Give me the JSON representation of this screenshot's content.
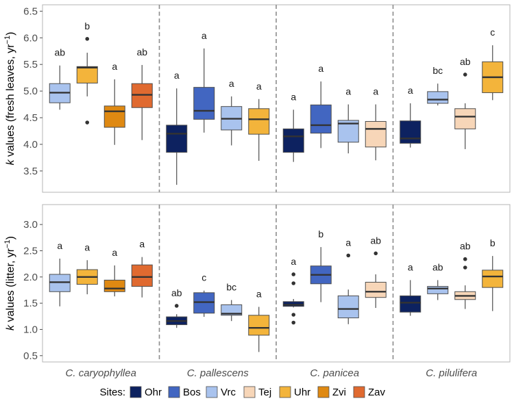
{
  "chart_data": {
    "type": "box",
    "species": [
      "C. caryophyllea",
      "C. pallescens",
      "C. panicea",
      "C. pilulifera"
    ],
    "legend": {
      "title": "Sites:",
      "items": [
        {
          "name": "Ohr",
          "color": "#0d2260"
        },
        {
          "name": "Bos",
          "color": "#4266c1"
        },
        {
          "name": "Vrc",
          "color": "#a9c3ee"
        },
        {
          "name": "Tej",
          "color": "#f7d6b8"
        },
        {
          "name": "Uhr",
          "color": "#f3b43b"
        },
        {
          "name": "Zvi",
          "color": "#df8912"
        },
        {
          "name": "Zav",
          "color": "#e06a30"
        }
      ]
    },
    "panels": [
      {
        "id": "fresh",
        "ylabel_k": "k",
        "ylabel_rest": " values (fresh leaves, yr",
        "ylabel_sup": "−1",
        "ylabel_close": ")",
        "ylim": [
          3.1,
          6.62
        ],
        "yticks": [
          "3.5",
          "4.0",
          "4.5",
          "5.0",
          "5.5",
          "6.0",
          "6.5"
        ],
        "groups": [
          {
            "species": "C. caryophyllea",
            "boxes": [
              {
                "site": "Vrc",
                "min": 4.65,
                "q1": 4.78,
                "median": 4.97,
                "q3": 5.14,
                "max": 5.48,
                "outliers": [],
                "letter": "ab"
              },
              {
                "site": "Uhr",
                "min": 4.9,
                "q1": 5.15,
                "median": 5.44,
                "q3": 5.46,
                "max": 5.72,
                "outliers": [
                  5.98,
                  4.41
                ],
                "letter": "b"
              },
              {
                "site": "Zvi",
                "min": 3.99,
                "q1": 4.32,
                "median": 4.62,
                "q3": 4.72,
                "max": 5.22,
                "outliers": [],
                "letter": "a"
              },
              {
                "site": "Zav",
                "min": 4.08,
                "q1": 4.69,
                "median": 4.93,
                "q3": 5.14,
                "max": 5.49,
                "outliers": [],
                "letter": "ab"
              }
            ]
          },
          {
            "species": "C. pallescens",
            "boxes": [
              {
                "site": "Ohr",
                "min": 3.24,
                "q1": 3.85,
                "median": 4.2,
                "q3": 4.36,
                "max": 5.05,
                "outliers": [],
                "letter": "a"
              },
              {
                "site": "Bos",
                "min": 4.22,
                "q1": 4.47,
                "median": 4.63,
                "q3": 5.07,
                "max": 5.8,
                "outliers": [],
                "letter": "a"
              },
              {
                "site": "Vrc",
                "min": 3.98,
                "q1": 4.27,
                "median": 4.48,
                "q3": 4.71,
                "max": 4.9,
                "outliers": [],
                "letter": "a"
              },
              {
                "site": "Uhr",
                "min": 3.69,
                "q1": 4.19,
                "median": 4.47,
                "q3": 4.67,
                "max": 4.85,
                "outliers": [],
                "letter": "a"
              }
            ]
          },
          {
            "species": "C. panicea",
            "boxes": [
              {
                "site": "Ohr",
                "min": 3.67,
                "q1": 3.85,
                "median": 4.15,
                "q3": 4.29,
                "max": 4.65,
                "outliers": [],
                "letter": "a"
              },
              {
                "site": "Bos",
                "min": 3.93,
                "q1": 4.21,
                "median": 4.36,
                "q3": 4.74,
                "max": 5.18,
                "outliers": [],
                "letter": "a"
              },
              {
                "site": "Vrc",
                "min": 3.83,
                "q1": 4.04,
                "median": 4.39,
                "q3": 4.45,
                "max": 4.75,
                "outliers": [],
                "letter": "a"
              },
              {
                "site": "Tej",
                "min": 3.7,
                "q1": 3.95,
                "median": 4.29,
                "q3": 4.43,
                "max": 4.75,
                "outliers": [],
                "letter": "a"
              }
            ]
          },
          {
            "species": "C. pilulifera",
            "boxes": [
              {
                "site": "Ohr",
                "min": 3.94,
                "q1": 4.02,
                "median": 4.11,
                "q3": 4.44,
                "max": 4.77,
                "outliers": [],
                "letter": "a"
              },
              {
                "site": "Vrc",
                "min": 4.73,
                "q1": 4.77,
                "median": 4.84,
                "q3": 4.99,
                "max": 5.14,
                "outliers": [],
                "letter": "bc"
              },
              {
                "site": "Tej",
                "min": 3.91,
                "q1": 4.29,
                "median": 4.52,
                "q3": 4.67,
                "max": 4.77,
                "outliers": [
                  5.31
                ],
                "letter": "ab"
              },
              {
                "site": "Uhr",
                "min": 4.83,
                "q1": 4.97,
                "median": 5.26,
                "q3": 5.55,
                "max": 5.86,
                "outliers": [],
                "letter": "c"
              }
            ]
          }
        ]
      },
      {
        "id": "litter",
        "ylabel_k": "k",
        "ylabel_rest": " values (litter, yr",
        "ylabel_sup": "−1",
        "ylabel_close": ")",
        "ylim": [
          0.38,
          3.38
        ],
        "yticks": [
          "0.5",
          "1.0",
          "1.5",
          "2.0",
          "2.5",
          "3.0"
        ],
        "groups": [
          {
            "species": "C. caryophyllea",
            "boxes": [
              {
                "site": "Vrc",
                "min": 1.44,
                "q1": 1.72,
                "median": 1.9,
                "q3": 2.05,
                "max": 2.35,
                "outliers": [],
                "letter": "a"
              },
              {
                "site": "Uhr",
                "min": 1.67,
                "q1": 1.86,
                "median": 2.0,
                "q3": 2.14,
                "max": 2.32,
                "outliers": [],
                "letter": "a"
              },
              {
                "site": "Zvi",
                "min": 1.63,
                "q1": 1.72,
                "median": 1.78,
                "q3": 1.94,
                "max": 2.22,
                "outliers": [],
                "letter": "a"
              },
              {
                "site": "Zav",
                "min": 1.61,
                "q1": 1.82,
                "median": 2.0,
                "q3": 2.23,
                "max": 2.38,
                "outliers": [],
                "letter": "a"
              }
            ]
          },
          {
            "species": "C. pallescens",
            "boxes": [
              {
                "site": "Ohr",
                "min": 1.03,
                "q1": 1.09,
                "median": 1.16,
                "q3": 1.24,
                "max": 1.29,
                "outliers": [
                  1.45
                ],
                "letter": "ab"
              },
              {
                "site": "Bos",
                "min": 1.24,
                "q1": 1.31,
                "median": 1.52,
                "q3": 1.7,
                "max": 1.74,
                "outliers": [],
                "letter": "c"
              },
              {
                "site": "Vrc",
                "min": 1.16,
                "q1": 1.27,
                "median": 1.3,
                "q3": 1.47,
                "max": 1.56,
                "outliers": [],
                "letter": "bc"
              },
              {
                "site": "Uhr",
                "min": 0.57,
                "q1": 0.89,
                "median": 1.03,
                "q3": 1.27,
                "max": 1.43,
                "outliers": [],
                "letter": "a"
              }
            ]
          },
          {
            "species": "C. panicea",
            "boxes": [
              {
                "site": "Ohr",
                "min": 1.42,
                "q1": 1.44,
                "median": 1.47,
                "q3": 1.53,
                "max": 1.58,
                "outliers": [
                  2.05,
                  1.88,
                  1.28,
                  1.13
                ],
                "letter": "a"
              },
              {
                "site": "Bos",
                "min": 1.52,
                "q1": 1.87,
                "median": 2.04,
                "q3": 2.21,
                "max": 2.57,
                "outliers": [],
                "letter": "b"
              },
              {
                "site": "Vrc",
                "min": 1.1,
                "q1": 1.22,
                "median": 1.39,
                "q3": 1.64,
                "max": 1.76,
                "outliers": [
                  2.41
                ],
                "letter": "a"
              },
              {
                "site": "Tej",
                "min": 1.41,
                "q1": 1.61,
                "median": 1.72,
                "q3": 1.9,
                "max": 2.05,
                "outliers": [
                  2.45
                ],
                "letter": "ab"
              }
            ]
          },
          {
            "species": "C. pilulifera",
            "boxes": [
              {
                "site": "Ohr",
                "min": 1.26,
                "q1": 1.33,
                "median": 1.51,
                "q3": 1.64,
                "max": 1.94,
                "outliers": [],
                "letter": "a"
              },
              {
                "site": "Vrc",
                "min": 1.56,
                "q1": 1.68,
                "median": 1.78,
                "q3": 1.82,
                "max": 1.94,
                "outliers": [],
                "letter": "ab"
              },
              {
                "site": "Tej",
                "min": 1.39,
                "q1": 1.57,
                "median": 1.64,
                "q3": 1.72,
                "max": 1.84,
                "outliers": [
                  2.34,
                  2.18
                ],
                "letter": "ab"
              },
              {
                "site": "Uhr",
                "min": 1.35,
                "q1": 1.8,
                "median": 2.01,
                "q3": 2.13,
                "max": 2.4,
                "outliers": [],
                "letter": "b"
              }
            ]
          }
        ]
      }
    ]
  }
}
